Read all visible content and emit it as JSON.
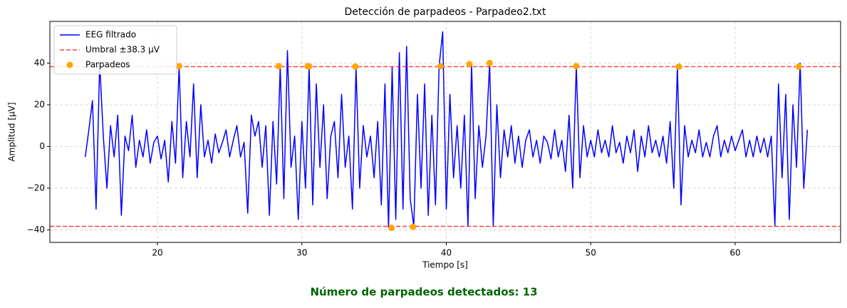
{
  "chart_data": {
    "type": "line",
    "title": "Detección de parpadeos - Parpadeo2.txt",
    "xlabel": "Tiempo [s]",
    "ylabel": "Amplitud [µV]",
    "annotation": "Número de parpadeos detectados: 13",
    "xlim": [
      12.55,
      67.3
    ],
    "ylim": [
      -46,
      60
    ],
    "xticks": [
      20,
      30,
      40,
      50,
      60
    ],
    "yticks": [
      {
        "value": -40,
        "label": "−40"
      },
      {
        "value": -20,
        "label": "−20"
      },
      0,
      20,
      40
    ],
    "grid": true,
    "legend": "upper left",
    "x": [
      15,
      15.25,
      15.5,
      15.75,
      16,
      16.25,
      16.5,
      16.75,
      17,
      17.25,
      17.5,
      17.75,
      18,
      18.25,
      18.5,
      18.75,
      19,
      19.25,
      19.5,
      19.75,
      20,
      20.25,
      20.5,
      20.75,
      21,
      21.25,
      21.5,
      21.75,
      22,
      22.25,
      22.5,
      22.75,
      23,
      23.25,
      23.5,
      23.75,
      24,
      24.25,
      24.5,
      24.75,
      25,
      25.25,
      25.5,
      25.75,
      26,
      26.25,
      26.5,
      26.75,
      27,
      27.25,
      27.5,
      27.75,
      28,
      28.25,
      28.5,
      28.75,
      29,
      29.25,
      29.5,
      29.75,
      30,
      30.25,
      30.5,
      30.75,
      31,
      31.25,
      31.5,
      31.75,
      32,
      32.25,
      32.5,
      32.75,
      33,
      33.25,
      33.5,
      33.75,
      34,
      34.25,
      34.5,
      34.75,
      35,
      35.25,
      35.5,
      35.75,
      36,
      36.25,
      36.5,
      36.75,
      37,
      37.25,
      37.5,
      37.75,
      38,
      38.25,
      38.5,
      38.75,
      39,
      39.25,
      39.5,
      39.75,
      40,
      40.25,
      40.5,
      40.75,
      41,
      41.25,
      41.5,
      41.75,
      42,
      42.25,
      42.5,
      42.75,
      43,
      43.25,
      43.5,
      43.75,
      44,
      44.25,
      44.5,
      44.75,
      45,
      45.25,
      45.5,
      45.75,
      46,
      46.25,
      46.5,
      46.75,
      47,
      47.25,
      47.5,
      47.75,
      48,
      48.25,
      48.5,
      48.75,
      49,
      49.25,
      49.5,
      49.75,
      50,
      50.25,
      50.5,
      50.75,
      51,
      51.25,
      51.5,
      51.75,
      52,
      52.25,
      52.5,
      52.75,
      53,
      53.25,
      53.5,
      53.75,
      54,
      54.25,
      54.5,
      54.75,
      55,
      55.25,
      55.5,
      55.75,
      56,
      56.25,
      56.5,
      56.75,
      57,
      57.25,
      57.5,
      57.75,
      58,
      58.25,
      58.5,
      58.75,
      59,
      59.25,
      59.5,
      59.75,
      60,
      60.25,
      60.5,
      60.75,
      61,
      61.25,
      61.5,
      61.75,
      62,
      62.25,
      62.5,
      62.75,
      63,
      63.25,
      63.5,
      63.75,
      64,
      64.25,
      64.5,
      64.75,
      65
    ],
    "series": [
      {
        "name": "EEG filtrado",
        "color": "#0000ff",
        "values": [
          -5,
          8,
          22,
          -30,
          40,
          5,
          -20,
          10,
          -5,
          15,
          -33,
          5,
          -2,
          15,
          -10,
          3,
          -5,
          8,
          -8,
          2,
          5,
          -6,
          3,
          -17,
          12,
          -8,
          38.5,
          -15,
          12,
          -5,
          30,
          -15,
          20,
          -5,
          3,
          -8,
          6,
          -3,
          2,
          8,
          -5,
          3,
          10,
          -5,
          2,
          -32,
          15,
          5,
          12,
          -10,
          10,
          -33,
          12,
          -18,
          38.5,
          -25,
          46,
          -10,
          5,
          -35,
          12,
          -20,
          38.5,
          -28,
          30,
          -10,
          20,
          -25,
          5,
          12,
          -15,
          25,
          -10,
          5,
          -30,
          38,
          -20,
          10,
          -5,
          5,
          -15,
          12,
          -28,
          30,
          -39,
          38,
          -35,
          45,
          -30,
          48,
          -25,
          -38.5,
          25,
          -20,
          30,
          -33,
          15,
          -28,
          38.5,
          55,
          -30,
          25,
          -15,
          10,
          -20,
          15,
          -38,
          39.5,
          -25,
          10,
          -10,
          5,
          40,
          -38,
          20,
          -15,
          8,
          -5,
          10,
          -8,
          5,
          -10,
          3,
          8,
          -5,
          3,
          -8,
          5,
          2,
          -6,
          8,
          -5,
          3,
          -12,
          15,
          -20,
          38.5,
          -15,
          10,
          -5,
          3,
          -5,
          8,
          -3,
          3,
          -5,
          10,
          -3,
          2,
          -8,
          5,
          -3,
          8,
          -12,
          5,
          -5,
          10,
          -3,
          3,
          -5,
          5,
          -8,
          12,
          -20,
          38,
          -28,
          10,
          -5,
          3,
          -3,
          8,
          -5,
          2,
          -5,
          5,
          10,
          -5,
          3,
          -3,
          5,
          -2,
          3,
          8,
          -5,
          3,
          -5,
          5,
          -3,
          4,
          -5,
          5,
          -38,
          30,
          -15,
          25,
          -35,
          20,
          -10,
          40,
          -20,
          8
        ]
      }
    ],
    "thresholds": {
      "name": "Umbral ±38.3 µV",
      "color": "#ff0000",
      "values": [
        38.3,
        -38.3
      ]
    },
    "points": {
      "name": "Parpadeos",
      "color": "#ffa500",
      "x": [
        21.5,
        28.4,
        30.4,
        30.5,
        33.7,
        36.2,
        37.7,
        39.6,
        41.6,
        43.0,
        49.0,
        56.1,
        64.4
      ],
      "values": [
        38.5,
        38.5,
        38.5,
        38.4,
        38.3,
        -39,
        -38.5,
        38.5,
        39.5,
        40,
        38.5,
        38.3,
        38.3
      ]
    }
  }
}
